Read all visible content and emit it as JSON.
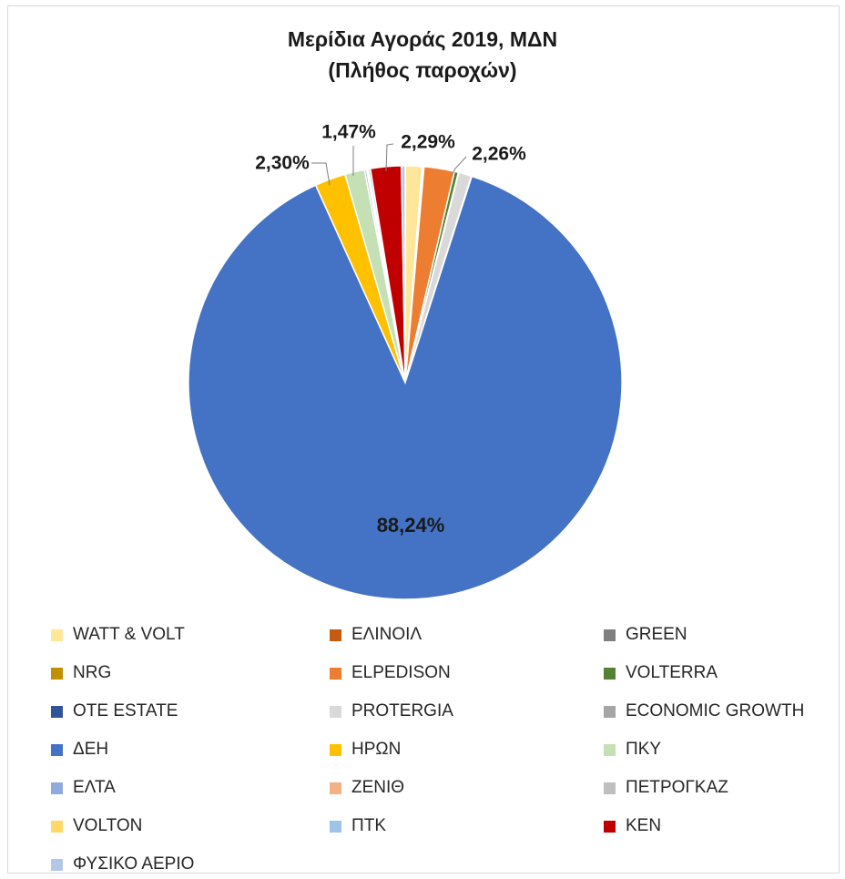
{
  "chart_data": {
    "type": "pie",
    "title": "Μερίδια Αγοράς 2019, ΜΔΝ",
    "subtitle": "(Πλήθος παροχών)",
    "slices": [
      {
        "name": "WATT & VOLT",
        "value": 1.25,
        "color": "#ffe699"
      },
      {
        "name": "ΕΛΙΝΟΙΛ",
        "value": 0.05,
        "color": "#c55a11"
      },
      {
        "name": "GREEN",
        "value": 0.04,
        "color": "#7f7f7f"
      },
      {
        "name": "NRG",
        "value": 0.05,
        "color": "#bf9000"
      },
      {
        "name": "ELPEDISON",
        "value": 2.26,
        "color": "#ed7d31"
      },
      {
        "name": "VOLTERRA",
        "value": 0.3,
        "color": "#548235"
      },
      {
        "name": "OTE ESTATE",
        "value": 0.04,
        "color": "#2f5597"
      },
      {
        "name": "PROTERGIA",
        "value": 0.95,
        "color": "#d9d9d9"
      },
      {
        "name": "ECONOMIC GROWTH",
        "value": 0.04,
        "color": "#a5a5a5"
      },
      {
        "name": "ΔΕΗ",
        "value": 88.24,
        "color": "#4472c4"
      },
      {
        "name": "ΗΡΩΝ",
        "value": 2.3,
        "color": "#ffc000"
      },
      {
        "name": "ΠΚΥ",
        "value": 1.47,
        "color": "#c5e0b4"
      },
      {
        "name": "ΕΛΤΑ",
        "value": 0.15,
        "color": "#8faadc"
      },
      {
        "name": "ΖΕΝΙΘ",
        "value": 0.05,
        "color": "#f4b183"
      },
      {
        "name": "ΠΕΤΡΟΓΚΑΖ",
        "value": 0.04,
        "color": "#bfbfbf"
      },
      {
        "name": "VOLTON",
        "value": 0.05,
        "color": "#ffd966"
      },
      {
        "name": "ΠΤΚ",
        "value": 0.15,
        "color": "#9dc3e6"
      },
      {
        "name": "ΚΕΝ",
        "value": 2.29,
        "color": "#c00000"
      },
      {
        "name": "ΦΥΣΙΚΟ ΑΕΡΙΟ",
        "value": 0.28,
        "color": "#b4c7e7"
      }
    ],
    "data_labels": [
      {
        "series": "ΔΕΗ",
        "text": "88,24%"
      },
      {
        "series": "ΗΡΩΝ",
        "text": "2,30%"
      },
      {
        "series": "ΠΚΥ",
        "text": "1,47%"
      },
      {
        "series": "ΚΕΝ",
        "text": "2,29%"
      },
      {
        "series": "ELPEDISON",
        "text": "2,26%"
      }
    ],
    "legend_position": "bottom",
    "legend_columns": 3
  }
}
